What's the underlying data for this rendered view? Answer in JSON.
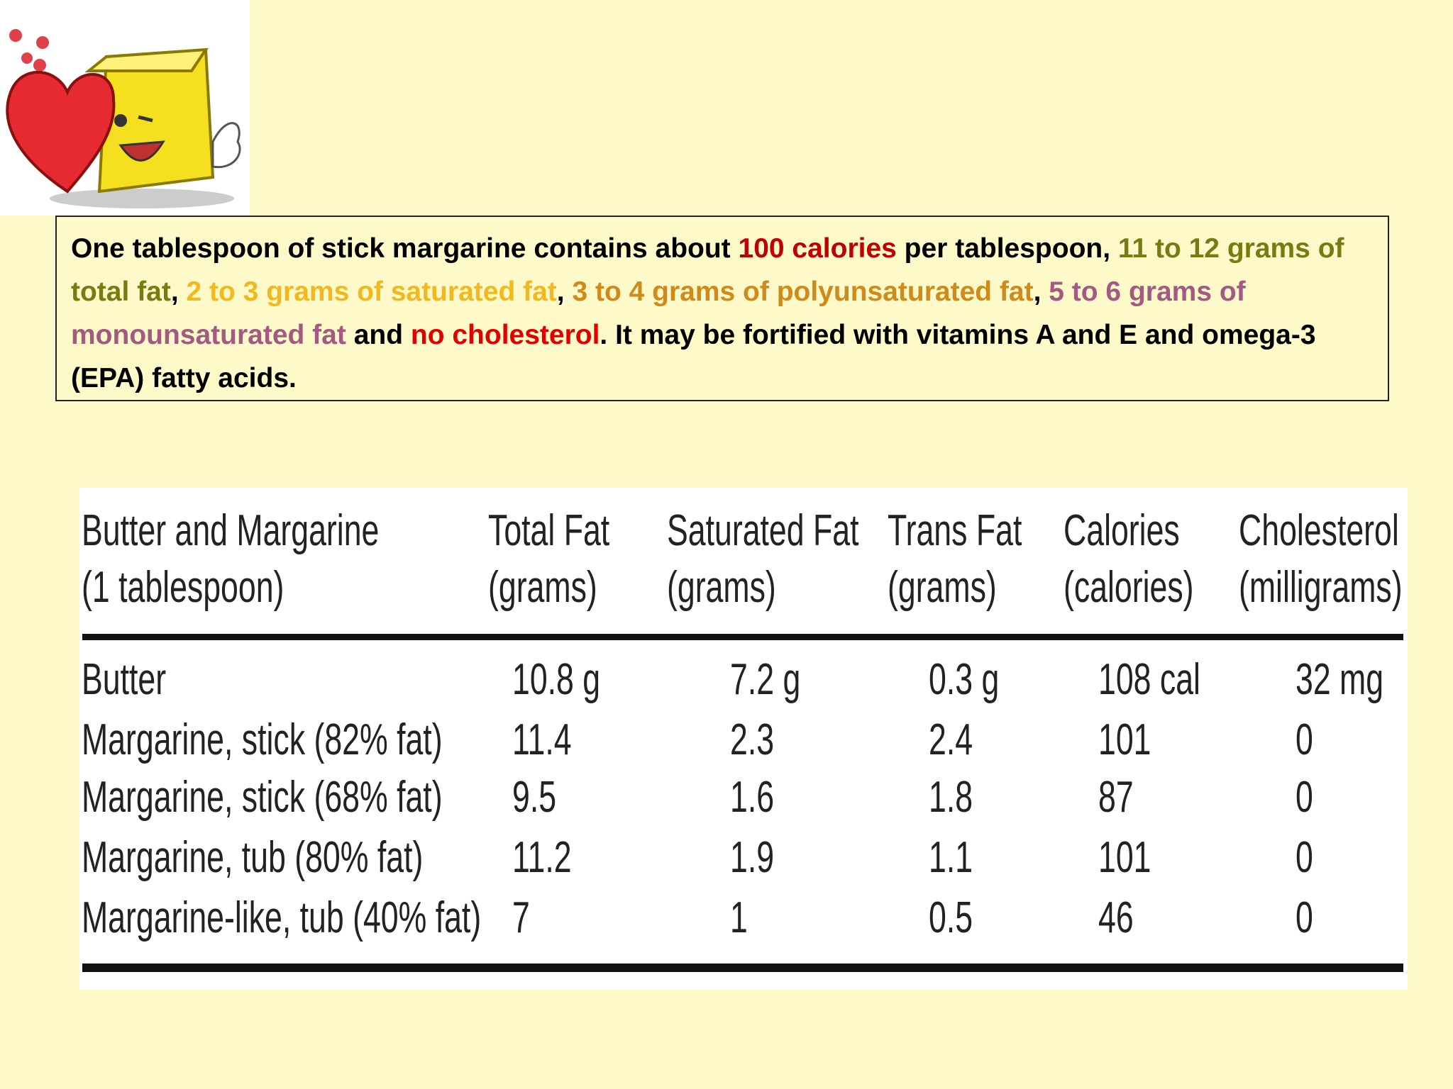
{
  "paragraph": {
    "segments": [
      {
        "text": "One tablespoon of stick margarine contains about ",
        "color": "#000000"
      },
      {
        "text": "100 calories",
        "color": "#c00000"
      },
      {
        "text": " per tablespoon, ",
        "color": "#000000"
      },
      {
        "text": "11 to 12 grams of total fat",
        "color": "#7a7a12"
      },
      {
        "text": ", ",
        "color": "#000000"
      },
      {
        "text": "2 to 3 grams of saturated fat",
        "color": "#f2b81e"
      },
      {
        "text": ", ",
        "color": "#000000"
      },
      {
        "text": "3 to 4 grams of polyunsaturated fat",
        "color": "#d08a1a"
      },
      {
        "text": ", ",
        "color": "#000000"
      },
      {
        "text": "5 to 6 grams of monounsaturated fat",
        "color": "#a25a82"
      },
      {
        "text": " and ",
        "color": "#000000"
      },
      {
        "text": "no cholesterol",
        "color": "#e00000"
      },
      {
        "text": ". It may be fortified with vitamins A and E and omega-3 (EPA) fatty acids.",
        "color": "#000000"
      }
    ]
  },
  "table": {
    "header": [
      [
        "Butter and Margarine",
        "(1 tablespoon)"
      ],
      [
        "Total Fat",
        "(grams)"
      ],
      [
        "Saturated Fat",
        "(grams)"
      ],
      [
        "Trans Fat",
        "(grams)"
      ],
      [
        "Calories",
        "(calories)"
      ],
      [
        "Cholesterol",
        "(milligrams)"
      ]
    ],
    "rows": [
      [
        "Butter",
        "10.8 g",
        "7.2 g",
        "0.3 g",
        "108 cal",
        "32 mg"
      ],
      [
        "Margarine, stick (82% fat)",
        "11.4",
        "2.3",
        "2.4",
        "101",
        "0"
      ],
      [
        "Margarine, stick (68% fat)",
        "9.5",
        "1.6",
        "1.8",
        "87",
        "0"
      ],
      [
        "Margarine, tub (80% fat)",
        "11.2",
        "1.9",
        "1.1",
        "101",
        "0"
      ],
      [
        "Margarine-like, tub (40% fat)",
        "7",
        "1",
        "0.5",
        "46",
        "0"
      ]
    ]
  }
}
